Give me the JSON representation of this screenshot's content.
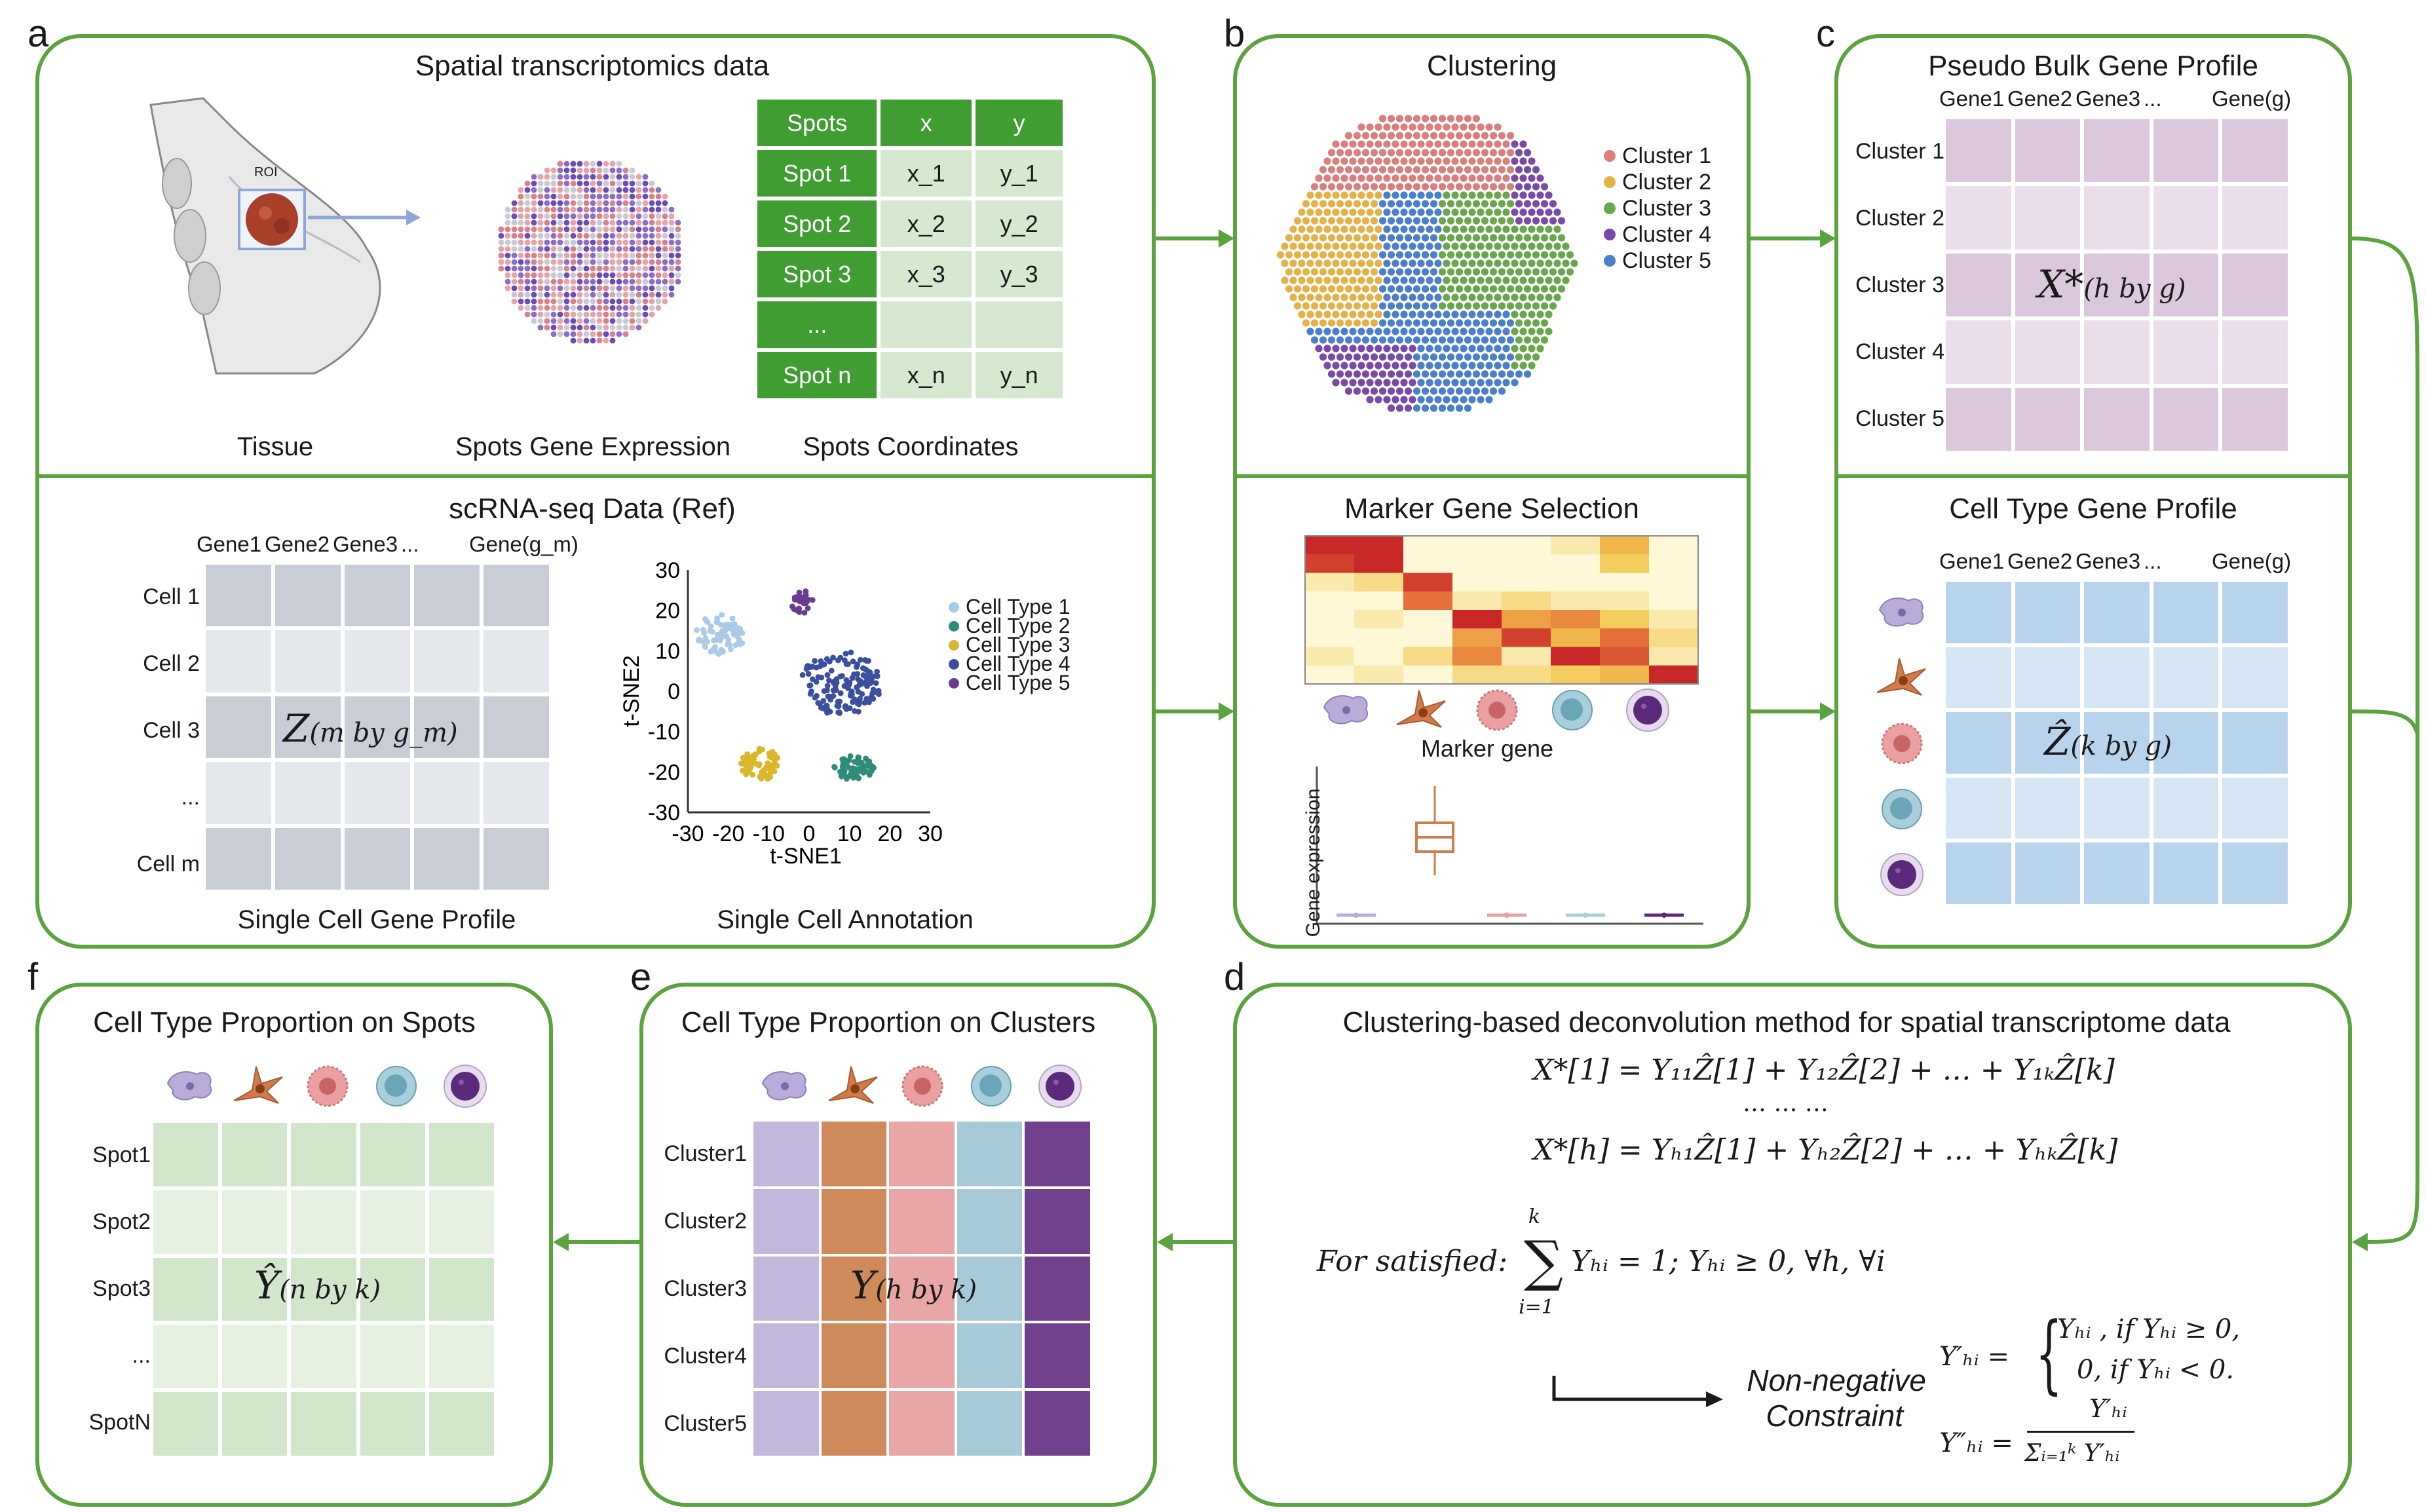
{
  "panel_labels": {
    "a": "a",
    "b": "b",
    "c": "c",
    "d": "d",
    "e": "e",
    "f": "f"
  },
  "panel_a": {
    "top_title": "Spatial transcriptomics data",
    "roi_label": "ROI",
    "caption_tissue": "Tissue",
    "caption_expression": "Spots Gene Expression",
    "caption_coordinates": "Spots Coordinates",
    "coord_table": {
      "headers": [
        "Spots",
        "x",
        "y"
      ],
      "rows": [
        [
          "Spot 1",
          "x_1",
          "y_1"
        ],
        [
          "Spot 2",
          "x_2",
          "y_2"
        ],
        [
          "Spot 3",
          "x_3",
          "y_3"
        ],
        [
          "...",
          "",
          ""
        ],
        [
          "Spot n",
          "x_n",
          "y_n"
        ]
      ]
    },
    "bottom_title": "scRNA-seq Data (Ref)",
    "sc_gene_headers": [
      "Gene1",
      "Gene2",
      "Gene3",
      "...",
      "Gene(g_m)"
    ],
    "sc_row_labels": [
      "Cell 1",
      "Cell 2",
      "Cell 3",
      "...",
      "Cell m"
    ],
    "sc_matrix_symbol": "Z",
    "sc_matrix_subscript": "(m by g_m)",
    "caption_profile": "Single Cell Gene Profile",
    "caption_annotation": "Single Cell Annotation",
    "tsne": {
      "xlabel": "t-SNE1",
      "ylabel": "t-SNE2",
      "xticks": [
        "-30",
        "-20",
        "-10",
        "0",
        "10",
        "20",
        "30"
      ],
      "yticks": [
        "30",
        "20",
        "10",
        "0",
        "-10",
        "-20",
        "-30"
      ],
      "legend": [
        "Cell Type 1",
        "Cell Type 2",
        "Cell Type 3",
        "Cell Type 4",
        "Cell Type 5"
      ]
    }
  },
  "panel_b": {
    "top_title": "Clustering",
    "cluster_legend": [
      "Cluster 1",
      "Cluster 2",
      "Cluster 3",
      "Cluster 4",
      "Cluster 5"
    ],
    "bottom_title": "Marker Gene Selection",
    "marker_caption": "Marker gene",
    "boxplot_ylabel": "Gene expression"
  },
  "panel_c": {
    "top_title": "Pseudo Bulk Gene Profile",
    "gene_headers": [
      "Gene1",
      "Gene2",
      "Gene3",
      "...",
      "Gene(g)"
    ],
    "row_labels": [
      "Cluster 1",
      "Cluster 2",
      "Cluster 3",
      "Cluster 4",
      "Cluster 5"
    ],
    "matrix_symbol": "X*",
    "matrix_subscript": "(h by g)",
    "bottom_title": "Cell Type Gene Profile",
    "ct_gene_headers": [
      "Gene1",
      "Gene2",
      "Gene3",
      "...",
      "Gene(g)"
    ],
    "ct_matrix_symbol": "Ẑ",
    "ct_matrix_subscript": "(k by g)"
  },
  "panel_d": {
    "title": "Clustering-based deconvolution method for spatial transcriptome data",
    "eq1": "X*[1] = Y₁₁Ẑ[1] + Y₁₂Ẑ[2] + … + Y₁ₖẐ[k]",
    "eq_dots": "…     …     …",
    "eq2": "X*[h] = Yₕ₁Ẑ[1] + Yₕ₂Ẑ[2] + … + YₕₖẐ[k]",
    "constraint_label": "For satisfied:",
    "constraint_expr": "Yₕᵢ = 1; Yₕᵢ ≥ 0, ∀h, ∀i",
    "sum_top": "k",
    "sum_bottom": "i=1",
    "nonneg_line1": "Non-negative",
    "nonneg_line2": "Constraint",
    "piece_lhs": "Y′ₕᵢ =",
    "piece_1": "Yₕᵢ ,  if Yₕᵢ ≥ 0,",
    "piece_2": "0, if Yₕᵢ  < 0.",
    "norm_lhs": "Y″ₕᵢ =",
    "norm_num": "Y′ₕᵢ",
    "norm_den": "Σᵢ₌₁ᵏ Y′ₕᵢ"
  },
  "panel_e": {
    "title": "Cell Type Proportion on Clusters",
    "row_labels": [
      "Cluster1",
      "Cluster2",
      "Cluster3",
      "Cluster4",
      "Cluster5"
    ],
    "matrix_symbol": "Y",
    "matrix_subscript": "(h by k)",
    "column_colors": [
      "#c3b7dc",
      "#cf8a5c",
      "#e8a6a6",
      "#a6cbd6",
      "#72418e"
    ]
  },
  "panel_f": {
    "title": "Cell Type Proportion on Spots",
    "row_labels": [
      "Spot1",
      "Spot2",
      "Spot3",
      "...",
      "SpotN"
    ],
    "matrix_symbol": "Ŷ",
    "matrix_subscript": "(n by k)"
  },
  "colors": {
    "green": "#5aa33e",
    "cluster": [
      "#d9807f",
      "#e5b24a",
      "#68a84a",
      "#7a4aa8",
      "#4a7fcb"
    ],
    "celltype": [
      "#a9cbe8",
      "#2e8b7a",
      "#d9b62a",
      "#3b4f9e",
      "#6a3b8f"
    ]
  }
}
